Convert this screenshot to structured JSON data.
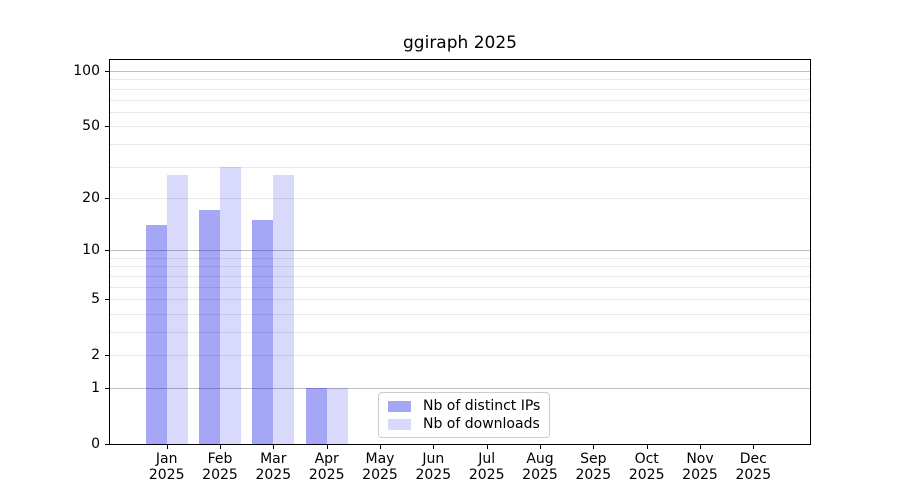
{
  "title": "ggiraph 2025",
  "chart_data": {
    "type": "bar",
    "title": "ggiraph 2025",
    "categories": [
      "Jan 2025",
      "Feb 2025",
      "Mar 2025",
      "Apr 2025",
      "May 2025",
      "Jun 2025",
      "Jul 2025",
      "Aug 2025",
      "Sep 2025",
      "Oct 2025",
      "Nov 2025",
      "Dec 2025"
    ],
    "x_tick_labels": [
      {
        "line1": "Jan",
        "line2": "2025"
      },
      {
        "line1": "Feb",
        "line2": "2025"
      },
      {
        "line1": "Mar",
        "line2": "2025"
      },
      {
        "line1": "Apr",
        "line2": "2025"
      },
      {
        "line1": "May",
        "line2": "2025"
      },
      {
        "line1": "Jun",
        "line2": "2025"
      },
      {
        "line1": "Jul",
        "line2": "2025"
      },
      {
        "line1": "Aug",
        "line2": "2025"
      },
      {
        "line1": "Sep",
        "line2": "2025"
      },
      {
        "line1": "Oct",
        "line2": "2025"
      },
      {
        "line1": "Nov",
        "line2": "2025"
      },
      {
        "line1": "Dec",
        "line2": "2025"
      }
    ],
    "series": [
      {
        "name": "Nb of distinct IPs",
        "color": "rgba(0,0,232,0.35)",
        "color_hex": "#a6a6f6",
        "values": [
          14,
          17,
          15,
          1,
          0,
          0,
          0,
          0,
          0,
          0,
          0,
          0
        ]
      },
      {
        "name": "Nb of downloads",
        "color": "rgba(0,0,232,0.15)",
        "color_hex": "#d9d9fb",
        "values": [
          27,
          30,
          27,
          1,
          0,
          0,
          0,
          0,
          0,
          0,
          0,
          0
        ]
      }
    ],
    "xlabel": "",
    "ylabel": "",
    "yscale": "log1p",
    "ylim": [
      0,
      115
    ],
    "yticks": [
      {
        "value": 100,
        "label": "100"
      },
      {
        "value": 50,
        "label": "50"
      },
      {
        "value": 20,
        "label": "20"
      },
      {
        "value": 10,
        "label": "10"
      },
      {
        "value": 5,
        "label": "5"
      },
      {
        "value": 2,
        "label": "2"
      },
      {
        "value": 1,
        "label": "1"
      },
      {
        "value": 0,
        "label": "0"
      }
    ],
    "gridlines": {
      "major": [
        1,
        10,
        100
      ],
      "minor": [
        2,
        3,
        4,
        5,
        6,
        7,
        8,
        9,
        20,
        30,
        40,
        50,
        60,
        70,
        80,
        90
      ],
      "major_color": "#bfbfbf",
      "minor_color": "#e9e9e9"
    },
    "legend_position": "lower center inside",
    "grid": "on"
  },
  "legend": {
    "items": [
      {
        "label": "Nb of distinct IPs"
      },
      {
        "label": "Nb of downloads"
      }
    ]
  }
}
